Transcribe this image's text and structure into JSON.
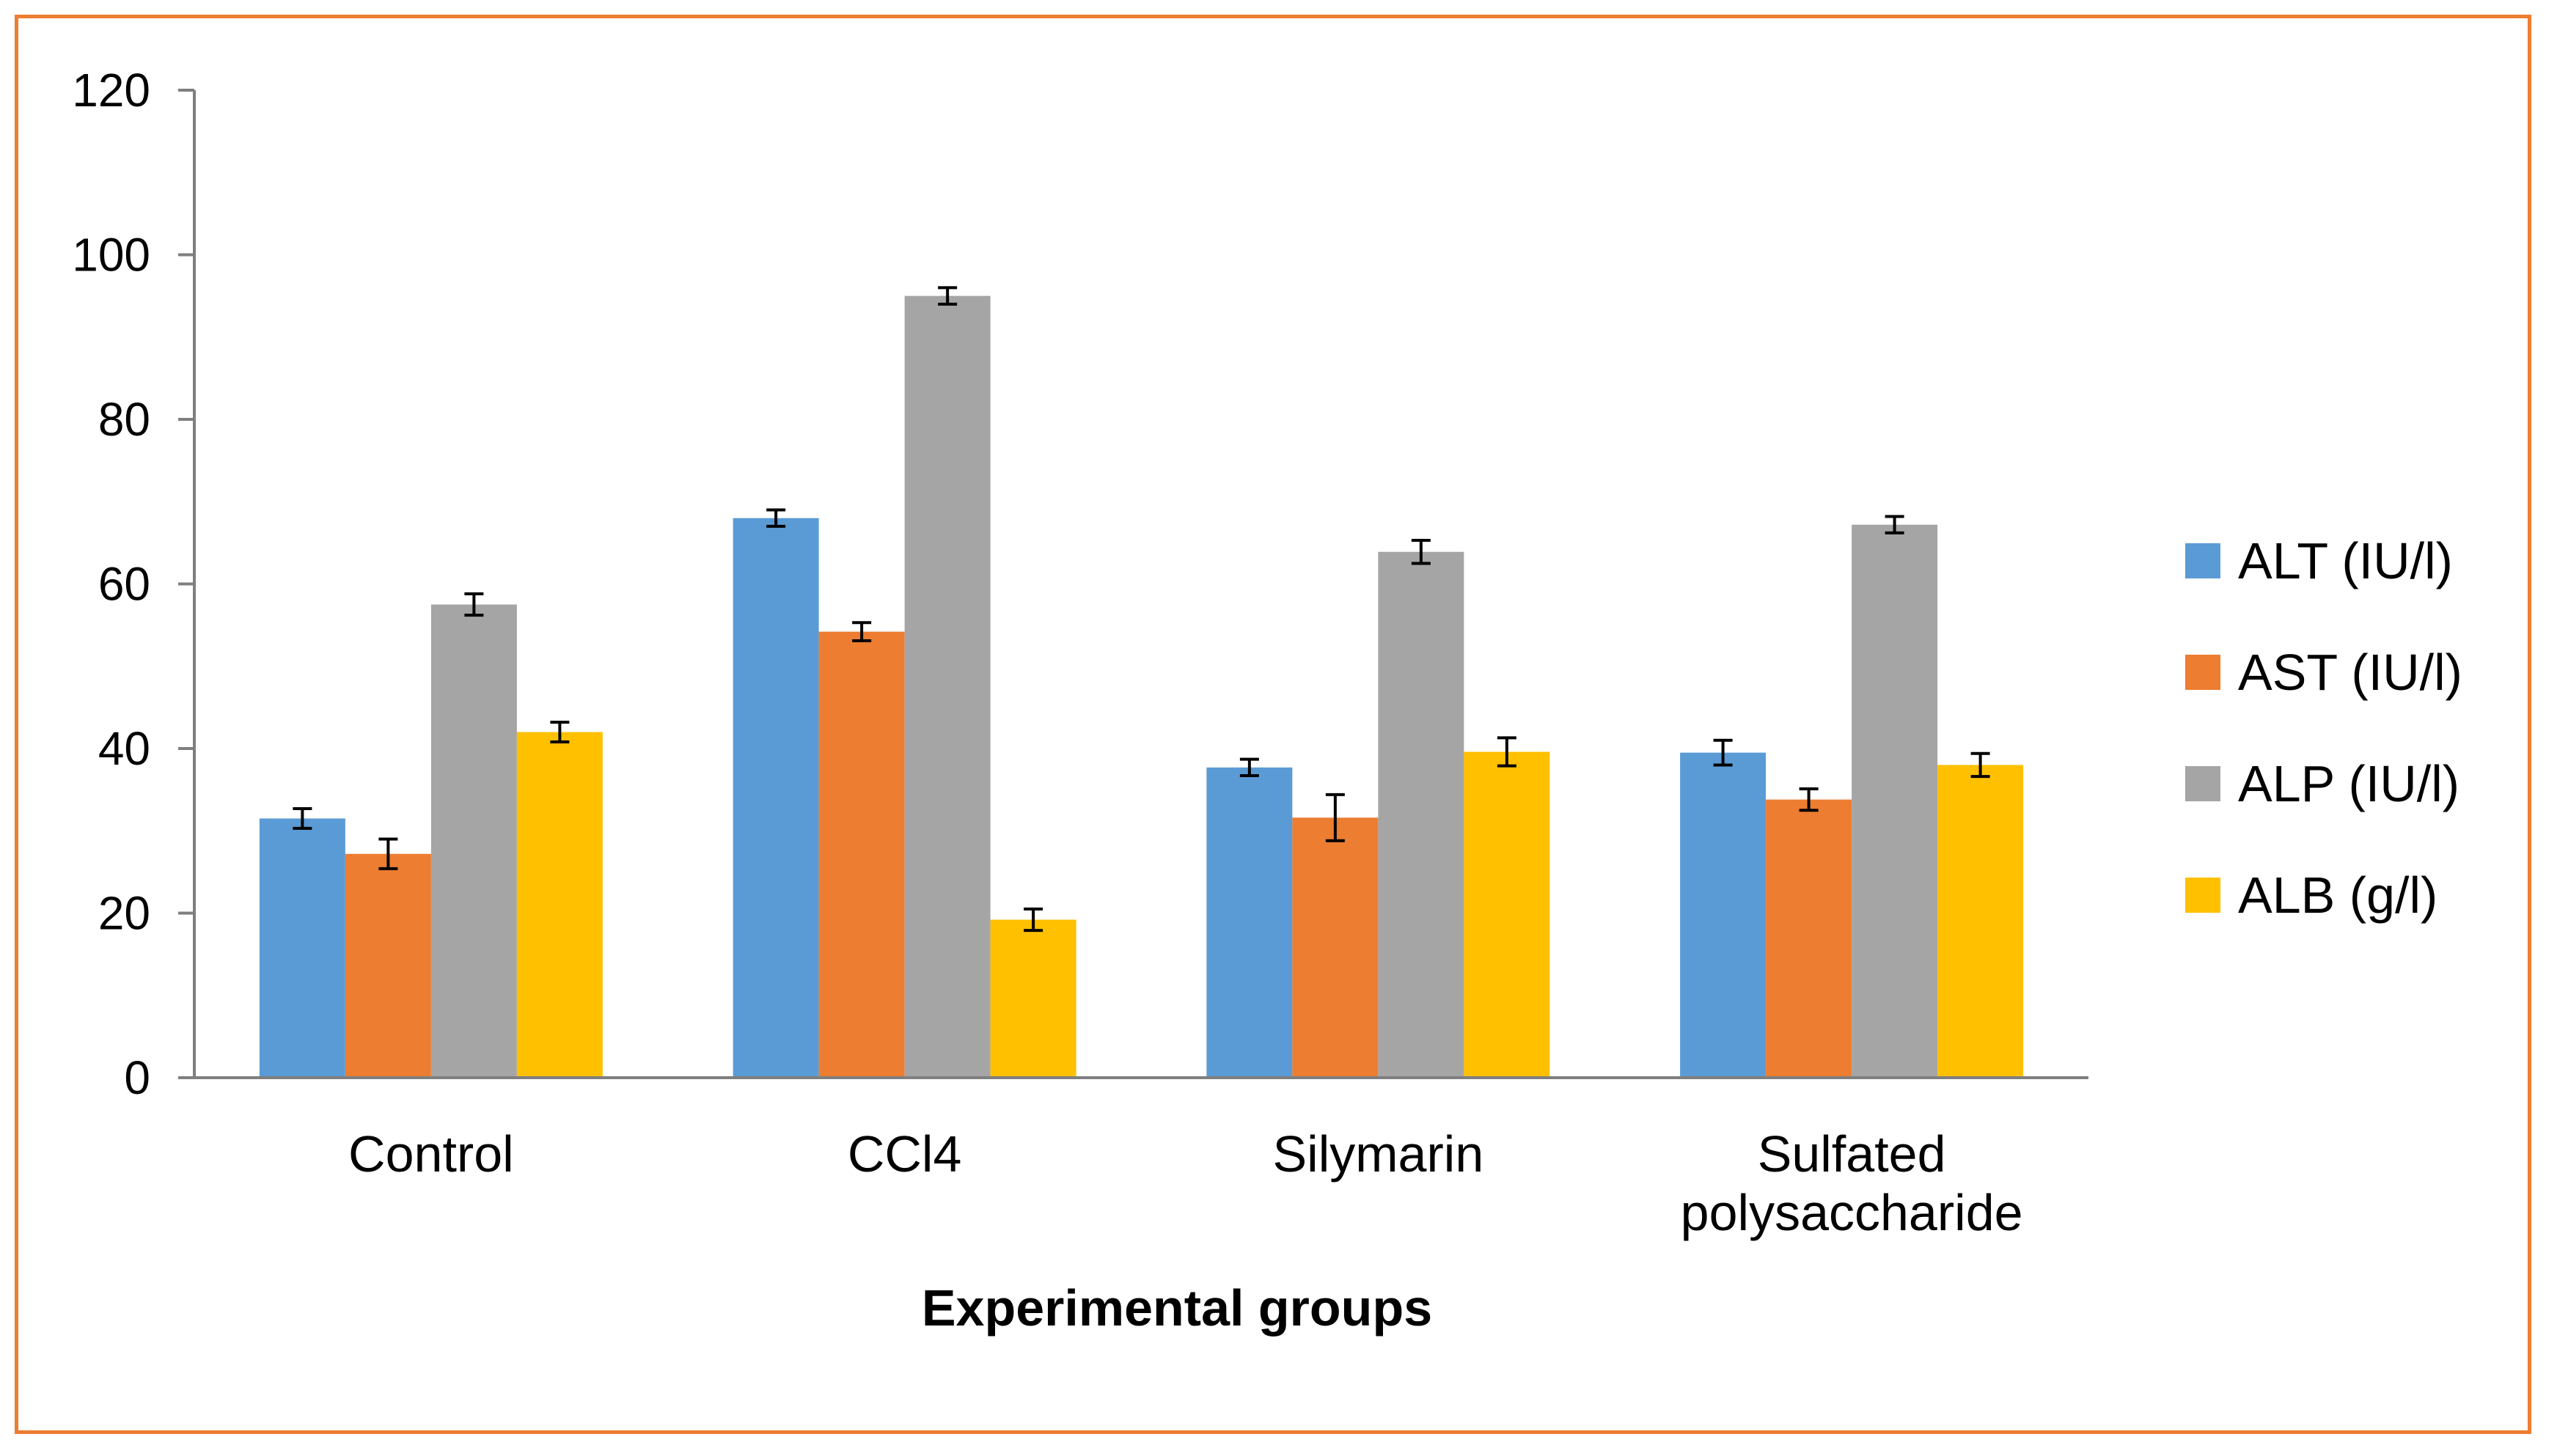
{
  "chart_data": {
    "type": "bar",
    "title": "",
    "xlabel": "Experimental groups",
    "ylabel": "",
    "ylim": [
      0,
      120
    ],
    "yticks": [
      0,
      20,
      40,
      60,
      80,
      100,
      120
    ],
    "categories": [
      [
        "Control"
      ],
      [
        "CCl4"
      ],
      [
        "Silymarin"
      ],
      [
        "Sulfated",
        "polysaccharide"
      ]
    ],
    "legend_position": "right",
    "series": [
      {
        "name": "ALT (IU/l)",
        "color": "#5B9BD5",
        "values": [
          31.5,
          68,
          37.7,
          39.5
        ],
        "errors": [
          1.2,
          1.0,
          1.0,
          1.5
        ]
      },
      {
        "name": "AST (IU/l)",
        "color": "#ED7D31",
        "values": [
          27.2,
          54.2,
          31.6,
          33.8
        ],
        "errors": [
          1.8,
          1.1,
          2.8,
          1.3
        ]
      },
      {
        "name": "ALP (IU/l)",
        "color": "#A5A5A5",
        "values": [
          57.5,
          95,
          63.9,
          67.2
        ],
        "errors": [
          1.3,
          1.0,
          1.4,
          1.0
        ]
      },
      {
        "name": "ALB (g/l)",
        "color": "#FFC000",
        "values": [
          42,
          19.2,
          39.6,
          38
        ],
        "errors": [
          1.2,
          1.3,
          1.7,
          1.4
        ]
      }
    ]
  }
}
